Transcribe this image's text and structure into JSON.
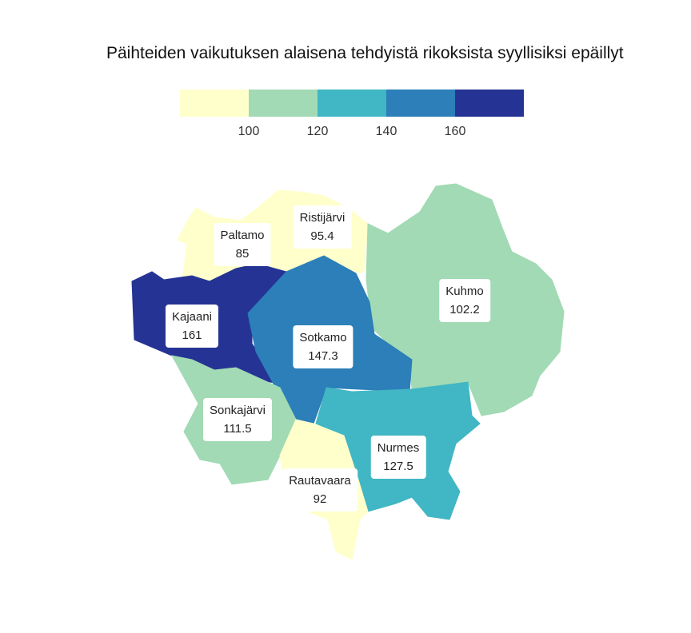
{
  "title": "Päihteiden vaikutuksen alaisena tehdyistä rikoksista syyllisiksi epäillyt",
  "legend": {
    "colors": [
      "#ffffcc",
      "#a1dab4",
      "#41b6c4",
      "#2c7fb8",
      "#253494"
    ],
    "ticks": [
      "100",
      "120",
      "140",
      "160"
    ]
  },
  "regions": [
    {
      "name": "Paltamo",
      "value": "85",
      "color": "#ffffcc"
    },
    {
      "name": "Ristijärvi",
      "value": "95.4",
      "color": "#ffffcc"
    },
    {
      "name": "Kuhmo",
      "value": "102.2",
      "color": "#a1dab4"
    },
    {
      "name": "Kajaani",
      "value": "161",
      "color": "#253494"
    },
    {
      "name": "Sotkamo",
      "value": "147.3",
      "color": "#2c7fb8"
    },
    {
      "name": "Sonkajärvi",
      "value": "111.5",
      "color": "#a1dab4"
    },
    {
      "name": "Nurmes",
      "value": "127.5",
      "color": "#41b6c4"
    },
    {
      "name": "Rautavaara",
      "value": "92",
      "color": "#ffffcc"
    }
  ]
}
